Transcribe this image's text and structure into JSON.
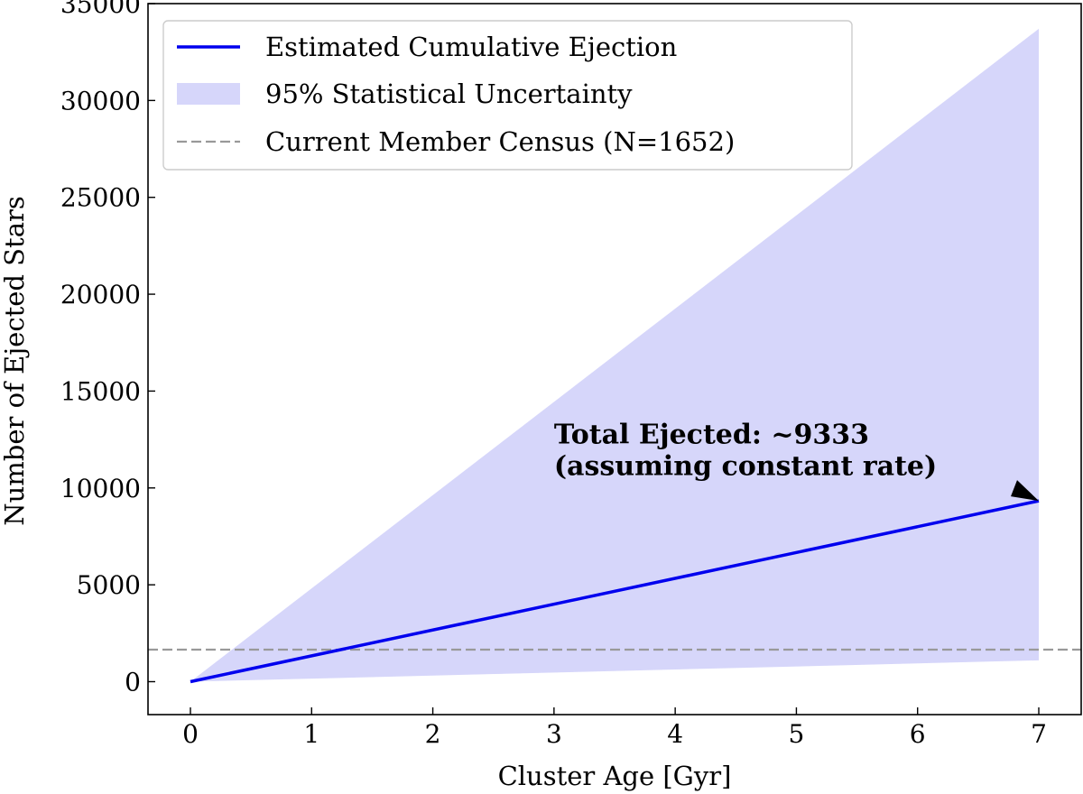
{
  "chart_data": {
    "type": "line",
    "xlabel": "Cluster Age [Gyr]",
    "ylabel": "Number of Ejected Stars",
    "xlim": [
      -0.35,
      7.35
    ],
    "ylim": [
      -1700,
      35000
    ],
    "xticks": [
      0,
      1,
      2,
      3,
      4,
      5,
      6,
      7
    ],
    "yticks": [
      0,
      5000,
      10000,
      15000,
      20000,
      25000,
      30000,
      35000
    ],
    "grid": false,
    "legend_position": "upper-left",
    "series": [
      {
        "name": "Estimated Cumulative Ejection",
        "kind": "line",
        "color": "#0000ee",
        "x": [
          0,
          7
        ],
        "y": [
          0,
          9333
        ]
      },
      {
        "name": "95% Statistical Uncertainty",
        "kind": "band",
        "color": "#d6d6fa",
        "x": [
          0,
          7
        ],
        "lower": [
          0,
          1100
        ],
        "upper": [
          0,
          33700
        ]
      },
      {
        "name": "Current Member Census (N=1652)",
        "kind": "hline",
        "color": "#999999",
        "y": 1652
      }
    ],
    "annotation": {
      "lines": [
        "Total Ejected: ~9333",
        "(assuming constant rate)"
      ],
      "text_position": {
        "x": 3.0,
        "y": 12300
      },
      "arrow_target": {
        "x": 7,
        "y": 9333
      }
    }
  }
}
